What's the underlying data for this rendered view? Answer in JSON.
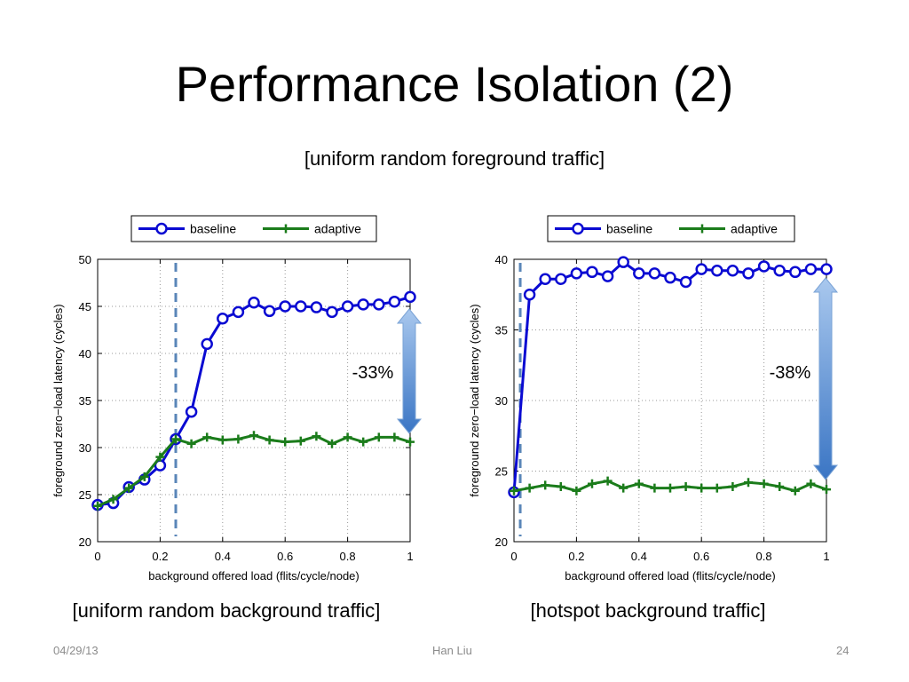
{
  "slide": {
    "title": "Performance Isolation (2)",
    "subtitle": "[uniform random foreground traffic]",
    "footer_date": "04/29/13",
    "footer_author": "Han Liu",
    "footer_page": "24"
  },
  "colors": {
    "baseline": "#0a0ad2",
    "adaptive": "#1b7c1b",
    "marker_line": "#5a86b8",
    "arrow_light": "#a9c8ee",
    "arrow_dark": "#3a75c4"
  },
  "chart_data": [
    {
      "type": "line",
      "caption": "[uniform random background traffic]",
      "xlabel": "background offered load (flits/cycle/node)",
      "ylabel": "foreground zero−load latency (cycles)",
      "xlim": [
        0,
        1
      ],
      "ylim": [
        20,
        50
      ],
      "xticks": [
        "0",
        "0.2",
        "0.4",
        "0.6",
        "0.8",
        "1"
      ],
      "yticks": [
        "20",
        "25",
        "30",
        "35",
        "40",
        "45",
        "50"
      ],
      "grid": true,
      "legend": "top",
      "vline_x": 0.25,
      "annotation": "-33%",
      "x": [
        0,
        0.05,
        0.1,
        0.15,
        0.2,
        0.25,
        0.3,
        0.35,
        0.4,
        0.45,
        0.5,
        0.55,
        0.6,
        0.65,
        0.7,
        0.75,
        0.8,
        0.85,
        0.9,
        0.95,
        1
      ],
      "series": [
        {
          "name": "baseline",
          "values": [
            23.9,
            24.1,
            25.8,
            26.6,
            28.1,
            30.9,
            33.8,
            41.0,
            43.7,
            44.4,
            45.4,
            44.5,
            45.0,
            45.0,
            44.9,
            44.4,
            45.0,
            45.2,
            45.2,
            45.5,
            46.0
          ]
        },
        {
          "name": "adaptive",
          "values": [
            23.8,
            24.5,
            25.7,
            26.9,
            29.0,
            30.9,
            30.4,
            31.1,
            30.8,
            30.9,
            31.3,
            30.8,
            30.6,
            30.7,
            31.2,
            30.4,
            31.1,
            30.6,
            31.1,
            31.1,
            30.6
          ]
        }
      ]
    },
    {
      "type": "line",
      "caption": "[hotspot background traffic]",
      "xlabel": "background offered load (flits/cycle/node)",
      "ylabel": "foreground zero−load latency (cycles)",
      "xlim": [
        0,
        1
      ],
      "ylim": [
        20,
        40
      ],
      "xticks": [
        "0",
        "0.2",
        "0.4",
        "0.6",
        "0.8",
        "1"
      ],
      "yticks": [
        "20",
        "25",
        "30",
        "35",
        "40"
      ],
      "grid": true,
      "legend": "top",
      "vline_x": 0.02,
      "annotation": "-38%",
      "x": [
        0,
        0.05,
        0.1,
        0.15,
        0.2,
        0.25,
        0.3,
        0.35,
        0.4,
        0.45,
        0.5,
        0.55,
        0.6,
        0.65,
        0.7,
        0.75,
        0.8,
        0.85,
        0.9,
        0.95,
        1
      ],
      "series": [
        {
          "name": "baseline",
          "values": [
            23.5,
            37.5,
            38.6,
            38.6,
            39.0,
            39.1,
            38.8,
            39.8,
            39.0,
            39.0,
            38.7,
            38.4,
            39.3,
            39.2,
            39.2,
            39.0,
            39.5,
            39.2,
            39.1,
            39.3,
            39.3
          ]
        },
        {
          "name": "adaptive",
          "values": [
            23.6,
            23.8,
            24.0,
            23.9,
            23.6,
            24.1,
            24.3,
            23.8,
            24.1,
            23.8,
            23.8,
            23.9,
            23.8,
            23.8,
            23.9,
            24.2,
            24.1,
            23.9,
            23.6,
            24.1,
            23.7
          ]
        }
      ]
    }
  ]
}
